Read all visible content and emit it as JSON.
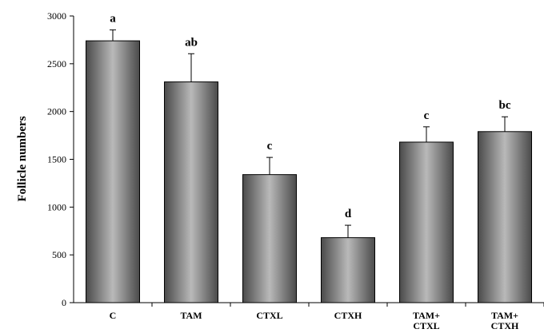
{
  "chart_data": {
    "type": "bar",
    "categories": [
      [
        "C"
      ],
      [
        "TAM"
      ],
      [
        "CTXL"
      ],
      [
        "CTXH"
      ],
      [
        "TAM+",
        "CTXL"
      ],
      [
        "TAM+",
        "CTXH"
      ]
    ],
    "values": [
      2740,
      2310,
      1340,
      680,
      1680,
      1790
    ],
    "error_bars": [
      115,
      295,
      180,
      130,
      160,
      155
    ],
    "significance_labels": [
      "a",
      "ab",
      "c",
      "d",
      "c",
      "bc"
    ],
    "ylabel": "Follicle numbers",
    "xlabel": "",
    "ylim": [
      0,
      3000
    ],
    "yticks": [
      0,
      500,
      1000,
      1500,
      2000,
      2500,
      3000
    ],
    "grid": false,
    "legend": "none",
    "bar_color": "#8c8c8c"
  }
}
